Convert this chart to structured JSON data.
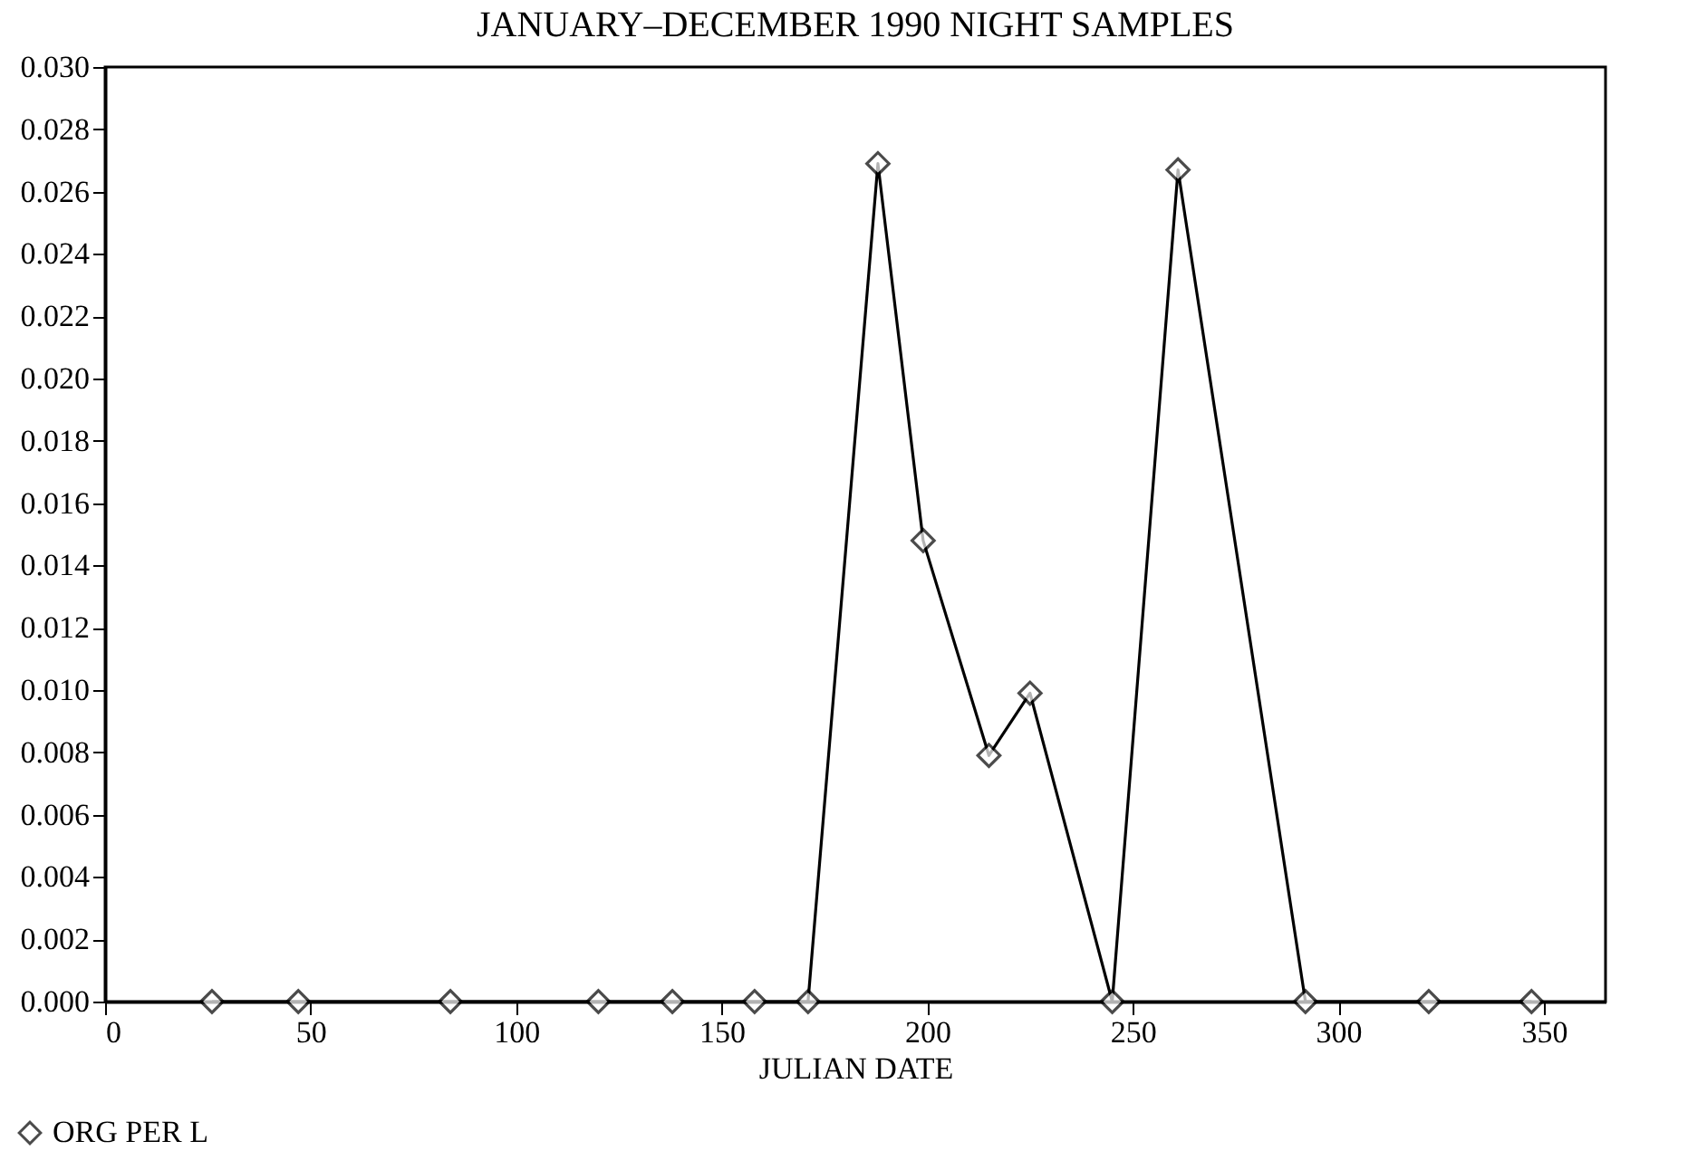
{
  "chart_data": {
    "type": "line",
    "title": "JANUARY–DECEMBER 1990 NIGHT SAMPLES",
    "xlabel": "JULIAN DATE",
    "x": [
      26,
      47,
      84,
      120,
      138,
      158,
      171,
      188,
      199,
      215,
      225,
      245,
      261,
      292,
      322,
      347
    ],
    "series": [
      {
        "name": "ORG PER L",
        "color": "#000000",
        "values": [
          0,
          0,
          0,
          0,
          0,
          0,
          0,
          0.0269,
          0.0148,
          0.0079,
          0.0099,
          0,
          0.0267,
          0,
          0,
          0
        ]
      }
    ],
    "xlim": [
      0,
      365
    ],
    "xticks": [
      0,
      50,
      100,
      150,
      200,
      250,
      300,
      350
    ],
    "ylim": [
      0,
      0.03
    ],
    "yticks": [
      {
        "value": 0,
        "label": "0.000"
      },
      {
        "value": 0.002,
        "label": "0.002"
      },
      {
        "value": 0.004,
        "label": "0.004"
      },
      {
        "value": 0.006,
        "label": "0.006"
      },
      {
        "value": 0.008,
        "label": "0.008"
      },
      {
        "value": 0.01,
        "label": "0.010"
      },
      {
        "value": 0.012,
        "label": "0.012"
      },
      {
        "value": 0.014,
        "label": "0.014"
      },
      {
        "value": 0.016,
        "label": "0.016"
      },
      {
        "value": 0.018,
        "label": "0.018"
      },
      {
        "value": 0.02,
        "label": "0.020"
      },
      {
        "value": 0.022,
        "label": "0.022"
      },
      {
        "value": 0.024,
        "label": "0.024"
      },
      {
        "value": 0.026,
        "label": "0.026"
      },
      {
        "value": 0.028,
        "label": "0.028"
      },
      {
        "value": 0.03,
        "label": "0.030"
      }
    ],
    "marker": "diamond",
    "line_style": "solid",
    "legend": "bottom left",
    "grid": false
  }
}
